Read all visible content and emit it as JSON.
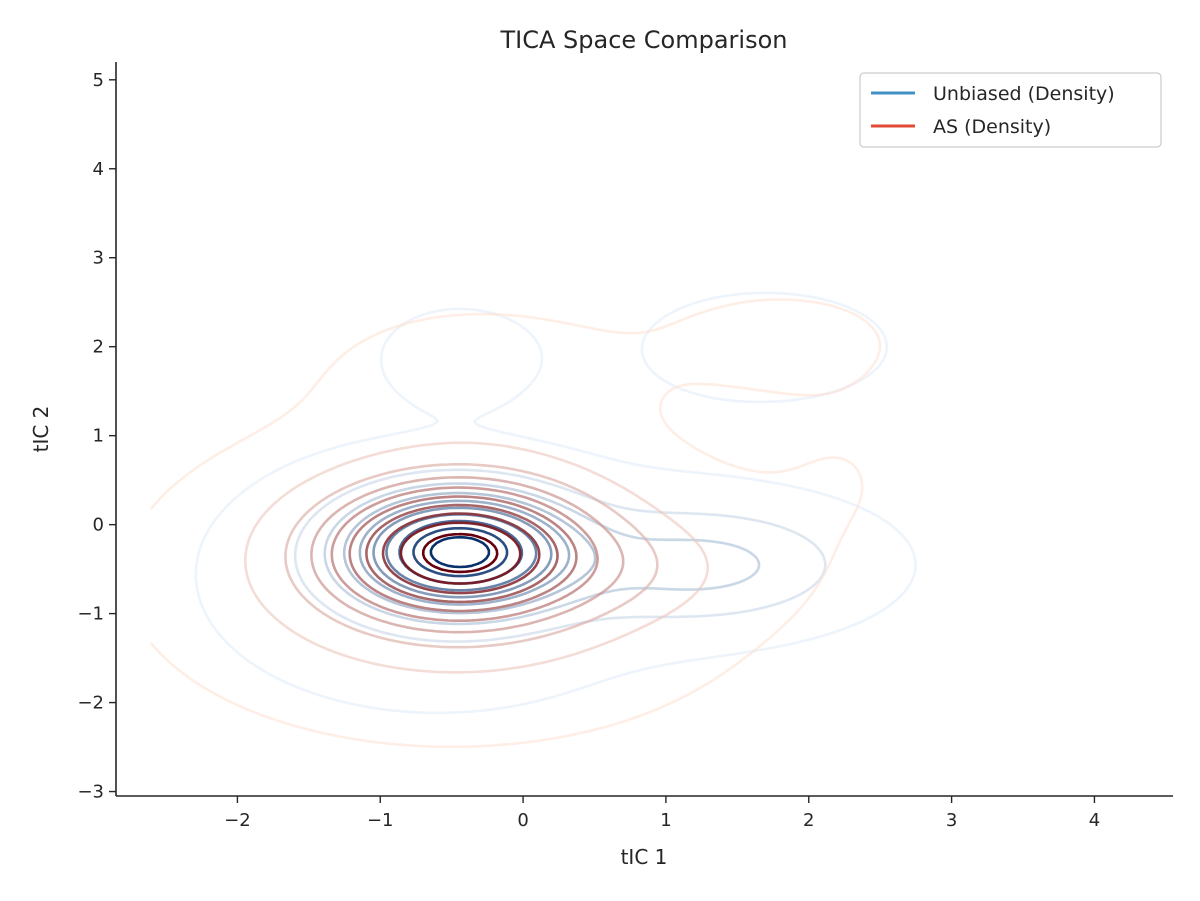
{
  "chart_data": {
    "type": "contour",
    "title": "TICA Space Comparison",
    "xlabel": "tIC 1",
    "ylabel": "tIC 2",
    "xlim": [
      -2.85,
      4.55
    ],
    "ylim": [
      -3.05,
      5.2
    ],
    "xticks": [
      -2,
      -1,
      0,
      1,
      2,
      3,
      4
    ],
    "yticks": [
      -3,
      -2,
      -1,
      0,
      1,
      2,
      3,
      4,
      5
    ],
    "xtick_labels": [
      "−2",
      "−1",
      "0",
      "1",
      "2",
      "3",
      "4"
    ],
    "ytick_labels": [
      "−3",
      "−2",
      "−1",
      "0",
      "1",
      "2",
      "3",
      "4",
      "5"
    ],
    "grid": false,
    "legend_position": "top-right",
    "series": [
      {
        "name": "Unbiased (Density)",
        "legend_color": "#4292c6",
        "color_dark": "#08306b",
        "color_light": "#deebf7",
        "components": [
          {
            "cx": -0.45,
            "cy": -0.3,
            "sx": 0.5,
            "sy": 0.42,
            "w": 1.0
          },
          {
            "cx": 1.3,
            "cy": -0.45,
            "sx": 0.7,
            "sy": 0.45,
            "w": 0.28
          },
          {
            "cx": -0.45,
            "cy": 1.9,
            "sx": 0.35,
            "sy": 0.35,
            "w": 0.1
          },
          {
            "cx": 1.7,
            "cy": 2.0,
            "sx": 0.7,
            "sy": 0.5,
            "w": 0.07
          },
          {
            "cx": -0.6,
            "cy": -0.6,
            "sx": 1.05,
            "sy": 0.95,
            "w": 0.12
          }
        ]
      },
      {
        "name": "AS (Density)",
        "legend_color": "#e34a33",
        "color_dark": "#67000d",
        "color_light": "#fee0d2",
        "components": [
          {
            "cx": -0.45,
            "cy": -0.3,
            "sx": 0.62,
            "sy": 0.52,
            "w": 1.0
          },
          {
            "cx": -0.5,
            "cy": -0.6,
            "sx": 1.2,
            "sy": 1.0,
            "w": 0.22
          },
          {
            "cx": 0.8,
            "cy": -0.5,
            "sx": 0.55,
            "sy": 0.4,
            "w": 0.1
          },
          {
            "cx": -0.3,
            "cy": 1.7,
            "sx": 0.75,
            "sy": 0.55,
            "w": 0.07
          },
          {
            "cx": 1.8,
            "cy": 2.1,
            "sx": 0.65,
            "sy": 0.45,
            "w": 0.055
          },
          {
            "cx": 2.3,
            "cy": 0.6,
            "sx": 0.5,
            "sy": 0.8,
            "w": 0.03
          }
        ]
      }
    ],
    "contour_levels": 10
  }
}
